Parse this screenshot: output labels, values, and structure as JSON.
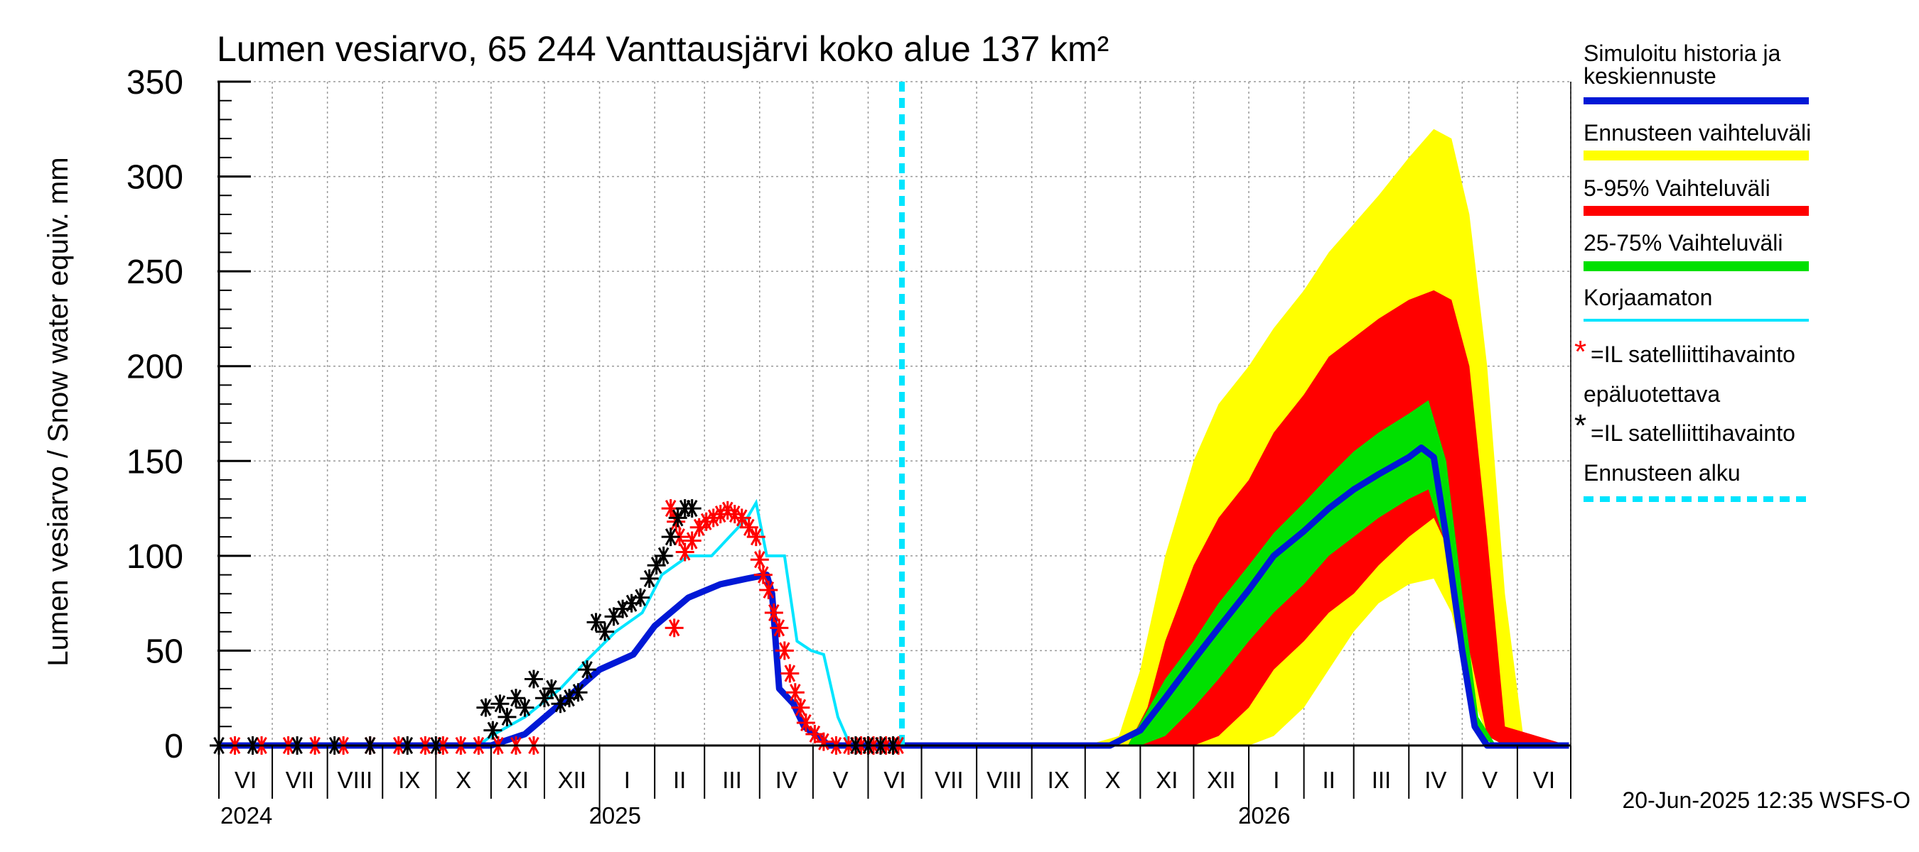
{
  "chart_data": {
    "type": "area",
    "title": "Lumen vesiarvo, 65 244 Vanttausjärvi koko alue 137 km²",
    "ylabel": "Lumen vesiarvo / Snow water equiv.    mm",
    "ylim": [
      0,
      350
    ],
    "yticks": [
      "0",
      "50",
      "100",
      "150",
      "200",
      "250",
      "300",
      "350"
    ],
    "xlim": [
      "2024-06-01",
      "2026-06-30"
    ],
    "months": [
      "VI",
      "VII",
      "VIII",
      "IX",
      "X",
      "XI",
      "XII",
      "I",
      "II",
      "III",
      "IV",
      "V",
      "VI",
      "VII",
      "VIII",
      "IX",
      "X",
      "XI",
      "XII",
      "I",
      "II",
      "III",
      "IV",
      "V",
      "VI"
    ],
    "years": [
      "2024",
      "2025",
      "2026"
    ],
    "grid": true,
    "legend_position": "right",
    "footer": "20-Jun-2025 12:35 WSFS-O",
    "forecast_start": "2025-06-20",
    "series": [
      {
        "name": "Simuloitu historia ja keskiennuste",
        "color": "#0018d6",
        "x": [
          "2024-06-01",
          "2024-11-01",
          "2024-11-20",
          "2024-12-10",
          "2025-01-01",
          "2025-01-20",
          "2025-02-01",
          "2025-02-20",
          "2025-03-10",
          "2025-03-25",
          "2025-04-05",
          "2025-04-08",
          "2025-04-12",
          "2025-04-20",
          "2025-04-26",
          "2025-05-05",
          "2025-05-10",
          "2025-06-20",
          "2025-10-15",
          "2025-11-01",
          "2025-11-15",
          "2025-12-01",
          "2025-12-15",
          "2026-01-01",
          "2026-01-15",
          "2026-02-01",
          "2026-02-15",
          "2026-03-01",
          "2026-03-15",
          "2026-04-01",
          "2026-04-08",
          "2026-04-15",
          "2026-04-22",
          "2026-05-01",
          "2026-05-08",
          "2026-05-15",
          "2026-06-30"
        ],
        "y": [
          0,
          0,
          6,
          22,
          40,
          48,
          63,
          78,
          85,
          88,
          90,
          80,
          30,
          22,
          10,
          4,
          0,
          0,
          0,
          8,
          25,
          45,
          62,
          82,
          100,
          113,
          125,
          135,
          143,
          152,
          157,
          152,
          110,
          50,
          10,
          0,
          0
        ]
      },
      {
        "name": "Korjaamaton",
        "color": "#00e5ff",
        "x": [
          "2024-06-01",
          "2024-10-25",
          "2024-11-01",
          "2024-11-20",
          "2024-12-10",
          "2024-12-25",
          "2025-01-10",
          "2025-01-25",
          "2025-02-05",
          "2025-02-20",
          "2025-03-05",
          "2025-03-25",
          "2025-03-30",
          "2025-04-05",
          "2025-04-15",
          "2025-04-22",
          "2025-04-30",
          "2025-05-07",
          "2025-05-15",
          "2025-05-22",
          "2025-06-20"
        ],
        "y": [
          0,
          0,
          5,
          15,
          30,
          45,
          60,
          70,
          90,
          100,
          100,
          120,
          128,
          100,
          100,
          55,
          50,
          48,
          15,
          0,
          0
        ]
      },
      {
        "name": "Ennusteen vaihteluväli",
        "color": "#ffff00",
        "x": [
          "2025-10-01",
          "2025-10-20",
          "2025-11-01",
          "2025-11-15",
          "2025-12-01",
          "2025-12-15",
          "2026-01-01",
          "2026-01-15",
          "2026-02-01",
          "2026-02-15",
          "2026-03-01",
          "2026-03-15",
          "2026-04-01",
          "2026-04-15",
          "2026-04-25",
          "2026-05-05",
          "2026-05-15",
          "2026-05-25",
          "2026-06-05",
          "2026-06-30"
        ],
        "low": [
          0,
          0,
          0,
          0,
          0,
          0,
          0,
          5,
          20,
          40,
          60,
          75,
          85,
          88,
          70,
          30,
          5,
          0,
          0,
          0
        ],
        "high": [
          0,
          5,
          40,
          100,
          150,
          180,
          200,
          220,
          240,
          260,
          275,
          290,
          310,
          325,
          320,
          280,
          200,
          80,
          0,
          0
        ]
      },
      {
        "name": "5-95% Vaihteluväli",
        "color": "#ff0000",
        "x": [
          "2025-10-01",
          "2025-10-25",
          "2025-11-05",
          "2025-11-15",
          "2025-12-01",
          "2025-12-15",
          "2026-01-01",
          "2026-01-15",
          "2026-02-01",
          "2026-02-15",
          "2026-03-01",
          "2026-03-15",
          "2026-04-01",
          "2026-04-15",
          "2026-04-25",
          "2026-05-05",
          "2026-05-15",
          "2026-05-25",
          "2026-06-30"
        ],
        "low": [
          0,
          0,
          0,
          0,
          0,
          5,
          20,
          40,
          55,
          70,
          80,
          95,
          110,
          120,
          100,
          50,
          5,
          0,
          0
        ],
        "high": [
          0,
          0,
          20,
          55,
          95,
          120,
          140,
          165,
          185,
          205,
          215,
          225,
          235,
          240,
          235,
          200,
          110,
          10,
          0
        ]
      },
      {
        "name": "25-75% Vaihteluväli",
        "color": "#00e000",
        "x": [
          "2025-10-01",
          "2025-10-25",
          "2025-11-01",
          "2025-11-15",
          "2025-12-01",
          "2025-12-15",
          "2026-01-01",
          "2026-01-15",
          "2026-02-01",
          "2026-02-15",
          "2026-03-01",
          "2026-03-15",
          "2026-04-01",
          "2026-04-12",
          "2026-04-22",
          "2026-05-01",
          "2026-05-10",
          "2026-05-20",
          "2026-06-30"
        ],
        "low": [
          0,
          0,
          0,
          5,
          20,
          35,
          55,
          70,
          85,
          100,
          110,
          120,
          130,
          135,
          105,
          45,
          5,
          0,
          0
        ],
        "high": [
          0,
          0,
          12,
          35,
          55,
          75,
          95,
          112,
          128,
          142,
          155,
          165,
          175,
          182,
          150,
          80,
          15,
          0,
          0
        ]
      }
    ],
    "observations": [
      {
        "name": "=IL satelliittihavainto epäluotettava",
        "color": "#ff0000",
        "x": [
          "2024-06-10",
          "2024-06-25",
          "2024-07-10",
          "2024-07-25",
          "2024-08-10",
          "2024-08-25",
          "2024-09-10",
          "2024-09-25",
          "2024-10-05",
          "2024-10-15",
          "2024-10-25",
          "2024-11-05",
          "2024-11-15",
          "2024-11-25",
          "2025-02-10",
          "2025-02-12",
          "2025-02-13",
          "2025-02-15",
          "2025-02-18",
          "2025-02-22",
          "2025-02-26",
          "2025-03-02",
          "2025-03-06",
          "2025-03-10",
          "2025-03-14",
          "2025-03-18",
          "2025-03-22",
          "2025-03-26",
          "2025-03-30",
          "2025-04-01",
          "2025-04-03",
          "2025-04-06",
          "2025-04-09",
          "2025-04-12",
          "2025-04-15",
          "2025-04-18",
          "2025-04-21",
          "2025-04-24",
          "2025-04-27",
          "2025-05-02",
          "2025-05-07",
          "2025-05-14",
          "2025-05-21",
          "2025-05-28",
          "2025-06-04",
          "2025-06-11",
          "2025-06-18"
        ],
        "y": [
          0,
          0,
          0,
          0,
          0,
          0,
          0,
          0,
          0,
          0,
          0,
          0,
          0,
          0,
          125,
          62,
          118,
          110,
          102,
          108,
          115,
          118,
          120,
          122,
          124,
          122,
          120,
          115,
          110,
          98,
          90,
          82,
          70,
          62,
          50,
          38,
          28,
          20,
          12,
          6,
          2,
          0,
          0,
          0,
          0,
          0,
          0
        ]
      },
      {
        "name": "=IL satelliittihavainto",
        "color": "#000000",
        "x": [
          "2024-06-01",
          "2024-06-20",
          "2024-07-15",
          "2024-08-05",
          "2024-08-25",
          "2024-09-15",
          "2024-10-01",
          "2024-10-29",
          "2024-11-02",
          "2024-11-06",
          "2024-11-10",
          "2024-11-15",
          "2024-11-20",
          "2024-11-25",
          "2024-12-01",
          "2024-12-05",
          "2024-12-10",
          "2024-12-15",
          "2024-12-20",
          "2024-12-25",
          "2024-12-30",
          "2025-01-04",
          "2025-01-09",
          "2025-01-14",
          "2025-01-19",
          "2025-01-24",
          "2025-01-29",
          "2025-02-02",
          "2025-02-06",
          "2025-02-10",
          "2025-02-14",
          "2025-02-18",
          "2025-02-22",
          "2025-05-25",
          "2025-06-01",
          "2025-06-08",
          "2025-06-15"
        ],
        "y": [
          0,
          0,
          0,
          0,
          0,
          0,
          0,
          20,
          8,
          22,
          15,
          25,
          20,
          35,
          25,
          30,
          22,
          25,
          28,
          40,
          65,
          60,
          68,
          72,
          75,
          78,
          88,
          95,
          100,
          110,
          120,
          125,
          125,
          0,
          0,
          0,
          0
        ]
      }
    ]
  },
  "legend": {
    "mean": "Simuloitu historia ja keskiennuste",
    "range_all": "Ennusteen vaihteluväli",
    "range_5_95": "5-95% Vaihteluväli",
    "range_25_75": "25-75% Vaihteluväli",
    "uncorrected": "Korjaamaton",
    "obs_unreliable_a": "=IL satelliittihavainto",
    "obs_unreliable_b": "epäluotettava",
    "obs": "=IL satelliittihavainto",
    "forecast_start": "Ennusteen alku"
  },
  "colors": {
    "mean": "#0018d6",
    "yellow": "#ffff00",
    "red": "#ff0000",
    "green": "#00e000",
    "cyan": "#00e5ff",
    "black": "#000000",
    "grid": "#9a9a9a"
  }
}
